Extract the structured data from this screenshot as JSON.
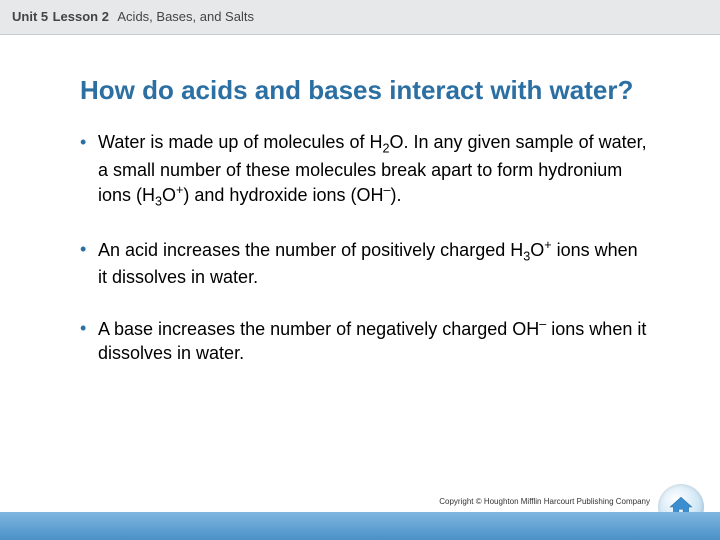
{
  "header": {
    "unit": "Unit 5",
    "lesson": "Lesson 2",
    "topic": "Acids, Bases, and Salts"
  },
  "title": "How do acids and bases interact with water?",
  "bullets": [
    "Water is made up of molecules of H<sub>2</sub>O. In any given sample of water, a small number of these molecules break apart to form hydronium ions (H<sub>3</sub>O<sup>+</sup>) and hydroxide ions (OH<sup>–</sup>).",
    "An acid increases the number of positively charged H<sub>3</sub>O<sup>+</sup> ions when it dissolves in water.",
    "A base increases the number of negatively charged OH<sup>–</sup> ions when it dissolves in water."
  ],
  "copyright": "Copyright © Houghton Mifflin Harcourt Publishing Company",
  "colors": {
    "header_bg": "#e6e8ea",
    "title_color": "#2b6fa3",
    "bullet_color": "#2b6fa3",
    "footer_gradient_top": "#7fb7e0",
    "footer_gradient_bottom": "#4a90c7",
    "home_btn_outer": "#8fc2e5",
    "home_btn_icon": "#3b8fd0"
  },
  "home_icon_name": "home-icon"
}
